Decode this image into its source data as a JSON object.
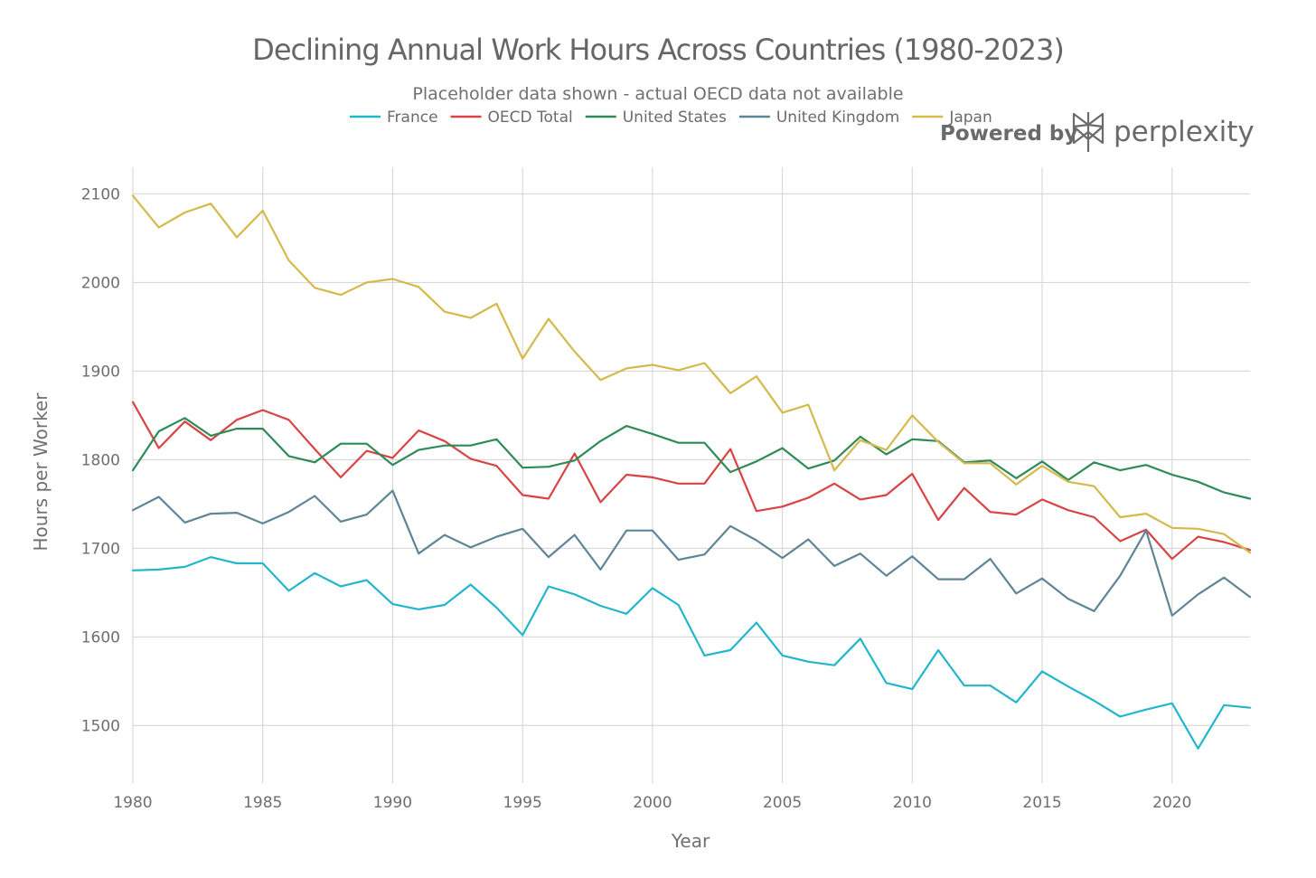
{
  "chart_data": {
    "type": "line",
    "title": "Declining Annual Work Hours Across Countries (1980-2023)",
    "subtitle": "Placeholder data shown - actual OECD data not available",
    "xlabel": "Year",
    "ylabel": "Hours per Worker",
    "xlim": [
      1980,
      2023
    ],
    "ylim": [
      1435,
      2130
    ],
    "x_ticks": [
      1980,
      1985,
      1990,
      1995,
      2000,
      2005,
      2010,
      2015,
      2020
    ],
    "y_ticks": [
      1500,
      1600,
      1700,
      1800,
      1900,
      2000,
      2100
    ],
    "grid": true,
    "legend_position": "top",
    "x": [
      1980,
      1981,
      1982,
      1983,
      1984,
      1985,
      1986,
      1987,
      1988,
      1989,
      1990,
      1991,
      1992,
      1993,
      1994,
      1995,
      1996,
      1997,
      1998,
      1999,
      2000,
      2001,
      2002,
      2003,
      2004,
      2005,
      2006,
      2007,
      2008,
      2009,
      2010,
      2011,
      2012,
      2013,
      2014,
      2015,
      2016,
      2017,
      2018,
      2019,
      2020,
      2021,
      2022,
      2023
    ],
    "series": [
      {
        "name": "France",
        "color": "#21b6cc",
        "values": [
          1675,
          1676,
          1679,
          1690,
          1683,
          1683,
          1652,
          1672,
          1657,
          1664,
          1637,
          1631,
          1636,
          1659,
          1633,
          1602,
          1657,
          1648,
          1635,
          1626,
          1655,
          1636,
          1579,
          1585,
          1616,
          1579,
          1572,
          1568,
          1598,
          1548,
          1541,
          1585,
          1545,
          1545,
          1526,
          1561,
          1544,
          1528,
          1510,
          1518,
          1525,
          1474,
          1523,
          1520
        ]
      },
      {
        "name": "OECD Total",
        "color": "#d94343",
        "values": [
          1865,
          1813,
          1843,
          1822,
          1845,
          1856,
          1845,
          1812,
          1780,
          1810,
          1802,
          1833,
          1821,
          1801,
          1793,
          1760,
          1756,
          1807,
          1752,
          1783,
          1780,
          1773,
          1773,
          1812,
          1742,
          1747,
          1757,
          1773,
          1755,
          1760,
          1784,
          1732,
          1768,
          1741,
          1738,
          1755,
          1743,
          1735,
          1708,
          1721,
          1688,
          1713,
          1707,
          1698
        ]
      },
      {
        "name": "United States",
        "color": "#2e8b57",
        "values": [
          1788,
          1832,
          1847,
          1827,
          1835,
          1835,
          1804,
          1797,
          1818,
          1818,
          1794,
          1811,
          1816,
          1816,
          1823,
          1791,
          1792,
          1799,
          1821,
          1838,
          1829,
          1819,
          1819,
          1786,
          1798,
          1813,
          1790,
          1799,
          1826,
          1806,
          1823,
          1821,
          1797,
          1799,
          1779,
          1798,
          1777,
          1797,
          1788,
          1794,
          1783,
          1775,
          1763,
          1756
        ]
      },
      {
        "name": "United Kingdom",
        "color": "#5e8596",
        "values": [
          1743,
          1758,
          1729,
          1739,
          1740,
          1728,
          1741,
          1759,
          1730,
          1738,
          1765,
          1694,
          1715,
          1701,
          1713,
          1722,
          1690,
          1715,
          1676,
          1720,
          1720,
          1687,
          1693,
          1725,
          1709,
          1689,
          1710,
          1680,
          1694,
          1669,
          1691,
          1665,
          1665,
          1688,
          1649,
          1666,
          1643,
          1629,
          1669,
          1720,
          1624,
          1648,
          1667,
          1645
        ]
      },
      {
        "name": "Japan",
        "color": "#d4b94b",
        "values": [
          2098,
          2062,
          2079,
          2089,
          2051,
          2081,
          2025,
          1994,
          1986,
          2000,
          2004,
          1995,
          1967,
          1960,
          1976,
          1914,
          1959,
          1922,
          1890,
          1903,
          1907,
          1901,
          1909,
          1875,
          1894,
          1853,
          1862,
          1788,
          1822,
          1811,
          1850,
          1820,
          1796,
          1796,
          1772,
          1793,
          1775,
          1770,
          1735,
          1739,
          1723,
          1722,
          1716,
          1695
        ]
      }
    ]
  },
  "branding": {
    "powered_by": "Powered by",
    "name": "perplexity"
  }
}
